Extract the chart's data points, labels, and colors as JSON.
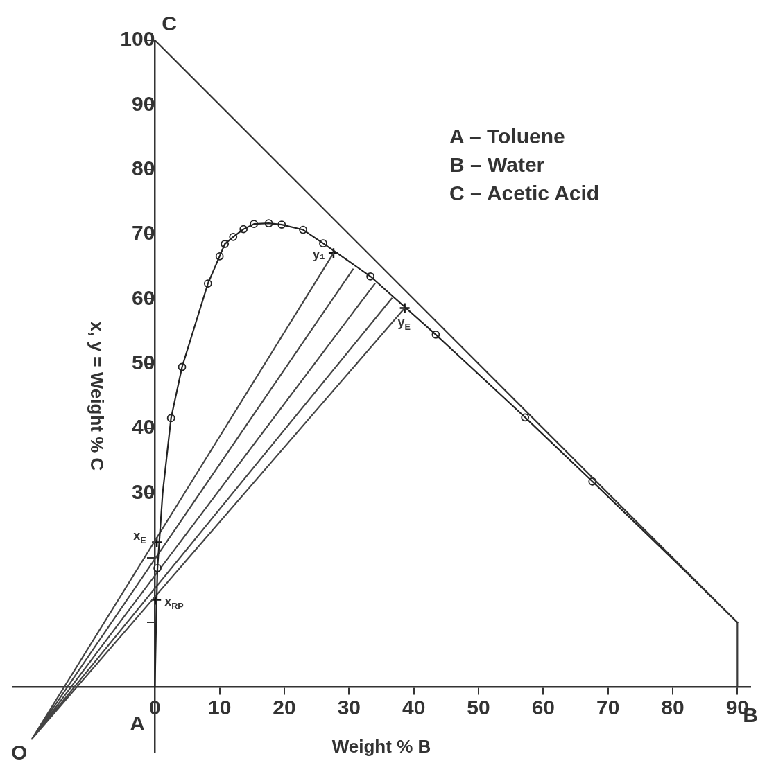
{
  "chart_data": {
    "type": "line",
    "xlabel": "Weight % B",
    "ylabel": "x, y = Weight % C",
    "xlim": [
      -22,
      92
    ],
    "ylim": [
      -10,
      100
    ],
    "xticks": [
      0,
      10,
      20,
      30,
      40,
      50,
      60,
      70,
      80,
      90
    ],
    "yticks": [
      {
        "value": 10,
        "label": null
      },
      {
        "value": 20,
        "label": null
      },
      30,
      40,
      50,
      60,
      70,
      80,
      90,
      100
    ],
    "grid": false,
    "legend": false,
    "line_style": "solid",
    "series": [
      {
        "marker": "none",
        "color": "#333333",
        "x": [
          0,
          90
        ],
        "values": [
          100,
          10
        ]
      },
      {
        "marker": "none",
        "color": "#3a3a3a",
        "x": [
          90,
          90
        ],
        "values": [
          10,
          0
        ]
      },
      {
        "marker": "none",
        "color": "#222222",
        "x": [
          0,
          0.2,
          0.4,
          1.2,
          2.5,
          4.2,
          8.2,
          10,
          10.8,
          12.1,
          13.7,
          15.3,
          17.6,
          19.6,
          22.9,
          26,
          33.3,
          43.4,
          57.2,
          67.6,
          80,
          90
        ],
        "values": [
          0,
          10,
          18.4,
          30,
          41.6,
          49.5,
          62.4,
          66.6,
          68.5,
          69.6,
          70.8,
          71.6,
          71.7,
          71.5,
          70.7,
          68.6,
          63.5,
          54.5,
          41.7,
          31.8,
          19.8,
          10
        ]
      },
      {
        "type": "scatter",
        "marker": "circle",
        "color": "#222222",
        "x": [
          0.4,
          2.5,
          4.2,
          8.2,
          10,
          10.8,
          12.1,
          13.7,
          15.3,
          17.6,
          19.6,
          22.9,
          26,
          33.3,
          43.4,
          57.2,
          67.6
        ],
        "values": [
          18.4,
          41.6,
          49.5,
          62.4,
          66.6,
          68.5,
          69.6,
          70.8,
          71.6,
          71.7,
          71.5,
          70.7,
          68.6,
          63.5,
          54.5,
          41.7,
          31.8
        ]
      },
      {
        "marker": "none",
        "color": "#444444",
        "x": [
          27.6,
          -19,
          30.6,
          -19,
          34,
          -19,
          36.6,
          -19,
          38.6
        ],
        "values": [
          67.1,
          -8,
          64.6,
          -8,
          62.4,
          -8,
          60.1,
          -8,
          58.6
        ]
      },
      {
        "type": "scatter",
        "marker": "cross",
        "color": "#111111",
        "x": [
          27.6,
          38.6,
          0.3,
          0.2
        ],
        "values": [
          67.1,
          58.6,
          22.4,
          13.5
        ]
      }
    ],
    "annotations": [
      {
        "text": "A",
        "x": 0,
        "y": 0
      },
      {
        "text": "B",
        "x": 90,
        "y": 0
      },
      {
        "text": "C",
        "x": 0,
        "y": 100
      },
      {
        "text": "O",
        "x": -19,
        "y": -8
      },
      {
        "text": "y₁",
        "x": 27.6,
        "y": 67.1
      },
      {
        "text": "y$_{E}$",
        "x": 38.6,
        "y": 58.6
      },
      {
        "text": "x$_{E}$",
        "x": 0.3,
        "y": 22.4
      },
      {
        "text": "x$_{RP}$",
        "x": 0.2,
        "y": 13.5
      },
      "A – Toluene",
      "B – Water",
      "C – Acetic Acid"
    ]
  }
}
